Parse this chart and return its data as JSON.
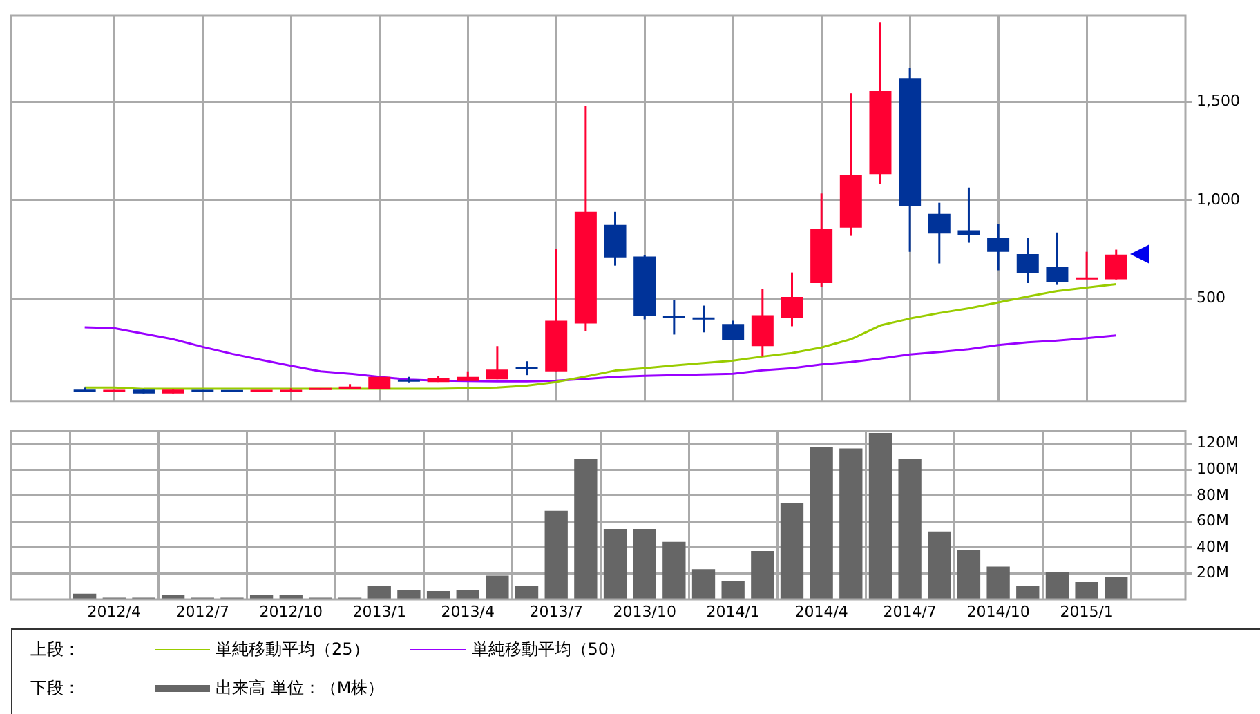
{
  "chart_data": [
    {
      "type": "candlestick",
      "legend_title": "上段：",
      "legend": "bottom",
      "grid": true,
      "tick_labels": "y",
      "categories": [
        null,
        "2012/4",
        null,
        null,
        "2012/7",
        null,
        null,
        "2012/10",
        null,
        null,
        "2013/1",
        null,
        null,
        "2013/4",
        null,
        null,
        "2013/7",
        null,
        null,
        "2013/10",
        null,
        null,
        "2014/1",
        null,
        null,
        "2014/4",
        null,
        null,
        "2014/7",
        null,
        null,
        "2014/10",
        null,
        null,
        "2015/1",
        null
      ],
      "ohlc": [
        [
          35,
          48,
          28,
          30
        ],
        [
          30,
          33,
          30,
          33
        ],
        [
          38,
          38,
          19,
          19
        ],
        [
          19,
          38,
          19,
          38
        ],
        [
          33,
          33,
          30,
          30
        ],
        [
          32,
          32,
          30,
          30
        ],
        [
          30,
          33,
          30,
          33
        ],
        [
          30,
          45,
          30,
          33
        ],
        [
          40,
          45,
          38,
          43
        ],
        [
          42,
          66,
          42,
          54
        ],
        [
          42,
          103,
          42,
          103
        ],
        [
          88,
          103,
          75,
          80
        ],
        [
          77,
          108,
          77,
          96
        ],
        [
          82,
          131,
          82,
          103
        ],
        [
          91,
          259,
          91,
          140
        ],
        [
          155,
          182,
          112,
          143
        ],
        [
          131,
          754,
          131,
          388
        ],
        [
          374,
          1480,
          336,
          941
        ],
        [
          875,
          941,
          668,
          710
        ],
        [
          714,
          721,
          395,
          411
        ],
        [
          410,
          493,
          318,
          404
        ],
        [
          403,
          465,
          329,
          395
        ],
        [
          371,
          388,
          290,
          290
        ],
        [
          259,
          551,
          206,
          416
        ],
        [
          404,
          633,
          360,
          509
        ],
        [
          579,
          1034,
          558,
          854
        ],
        [
          861,
          1543,
          819,
          1127
        ],
        [
          1132,
          1904,
          1083,
          1554
        ],
        [
          1620,
          1671,
          738,
          971
        ],
        [
          931,
          987,
          679,
          831
        ],
        [
          847,
          1064,
          784,
          824
        ],
        [
          808,
          878,
          644,
          738
        ],
        [
          726,
          808,
          579,
          628
        ],
        [
          661,
          836,
          570,
          586
        ],
        [
          600,
          738,
          600,
          605
        ],
        [
          598,
          749,
          598,
          724
        ]
      ],
      "colors": [
        "#003399",
        "#ff0033",
        "#003399",
        "#ff0033",
        "#003399",
        "#003399",
        "#ff0033",
        "#ff0033",
        "#ff0033",
        "#ff0033",
        "#ff0033",
        "#003399",
        "#ff0033",
        "#ff0033",
        "#ff0033",
        "#003399",
        "#ff0033",
        "#ff0033",
        "#003399",
        "#003399",
        "#003399",
        "#003399",
        "#003399",
        "#ff0033",
        "#ff0033",
        "#ff0033",
        "#ff0033",
        "#ff0033",
        "#003399",
        "#003399",
        "#003399",
        "#003399",
        "#003399",
        "#003399",
        "#ff0033",
        "#ff0033"
      ],
      "series": [
        {
          "type": "line",
          "name": "単純移動平均（25）",
          "color": "#99cc00",
          "values": [
            49,
            49,
            42,
            42,
            42,
            42,
            42,
            42,
            42,
            42,
            42,
            42,
            42,
            45,
            49,
            58,
            77,
            105,
            135,
            147,
            161,
            173,
            185,
            206,
            224,
            252,
            294,
            364,
            399,
            427,
            451,
            481,
            511,
            539,
            556,
            574
          ]
        },
        {
          "type": "line",
          "name": "単純移動平均（50）",
          "color": "#9900ff",
          "values": [
            355,
            350,
            322,
            294,
            255,
            220,
            189,
            159,
            131,
            119,
            103,
            89,
            84,
            82,
            80,
            80,
            84,
            92,
            103,
            108,
            112,
            115,
            119,
            136,
            147,
            166,
            178,
            196,
            217,
            229,
            243,
            264,
            278,
            287,
            299,
            313
          ]
        }
      ],
      "ylim": [
        -20,
        1940
      ],
      "yticks": [
        500,
        {
          "value": 1000,
          "label": "1,000"
        },
        {
          "value": 1500,
          "label": "1,500"
        }
      ]
    },
    {
      "type": "bar",
      "legend_title": "下段：",
      "legend": "bottom",
      "grid": true,
      "categories": [
        null,
        "2012/4",
        null,
        null,
        "2012/7",
        null,
        null,
        "2012/10",
        null,
        null,
        "2013/1",
        null,
        null,
        "2013/4",
        null,
        null,
        "2013/7",
        null,
        null,
        "2013/10",
        null,
        null,
        "2014/1",
        null,
        null,
        "2014/4",
        null,
        null,
        "2014/7",
        null,
        null,
        "2014/10",
        null,
        null,
        "2015/1",
        null
      ],
      "series": [
        {
          "name": "出来高 単位：（M株）",
          "color": "#666666",
          "values": [
            4,
            1,
            1,
            3,
            1,
            1,
            3,
            3,
            1,
            1,
            10,
            7,
            6,
            7,
            18,
            10,
            68,
            108,
            54,
            54,
            44,
            23,
            14,
            37,
            74,
            117,
            116,
            128,
            108,
            52,
            38,
            25,
            10,
            21,
            13,
            17
          ]
        }
      ],
      "ylim": [
        0,
        130
      ],
      "yticks": [
        {
          "value": 20,
          "label": "20M"
        },
        {
          "value": 40,
          "label": "40M"
        },
        {
          "value": 60,
          "label": "60M"
        },
        {
          "value": 80,
          "label": "80M"
        },
        {
          "value": 100,
          "label": "100M"
        },
        {
          "value": 120,
          "label": "120M"
        }
      ]
    }
  ]
}
